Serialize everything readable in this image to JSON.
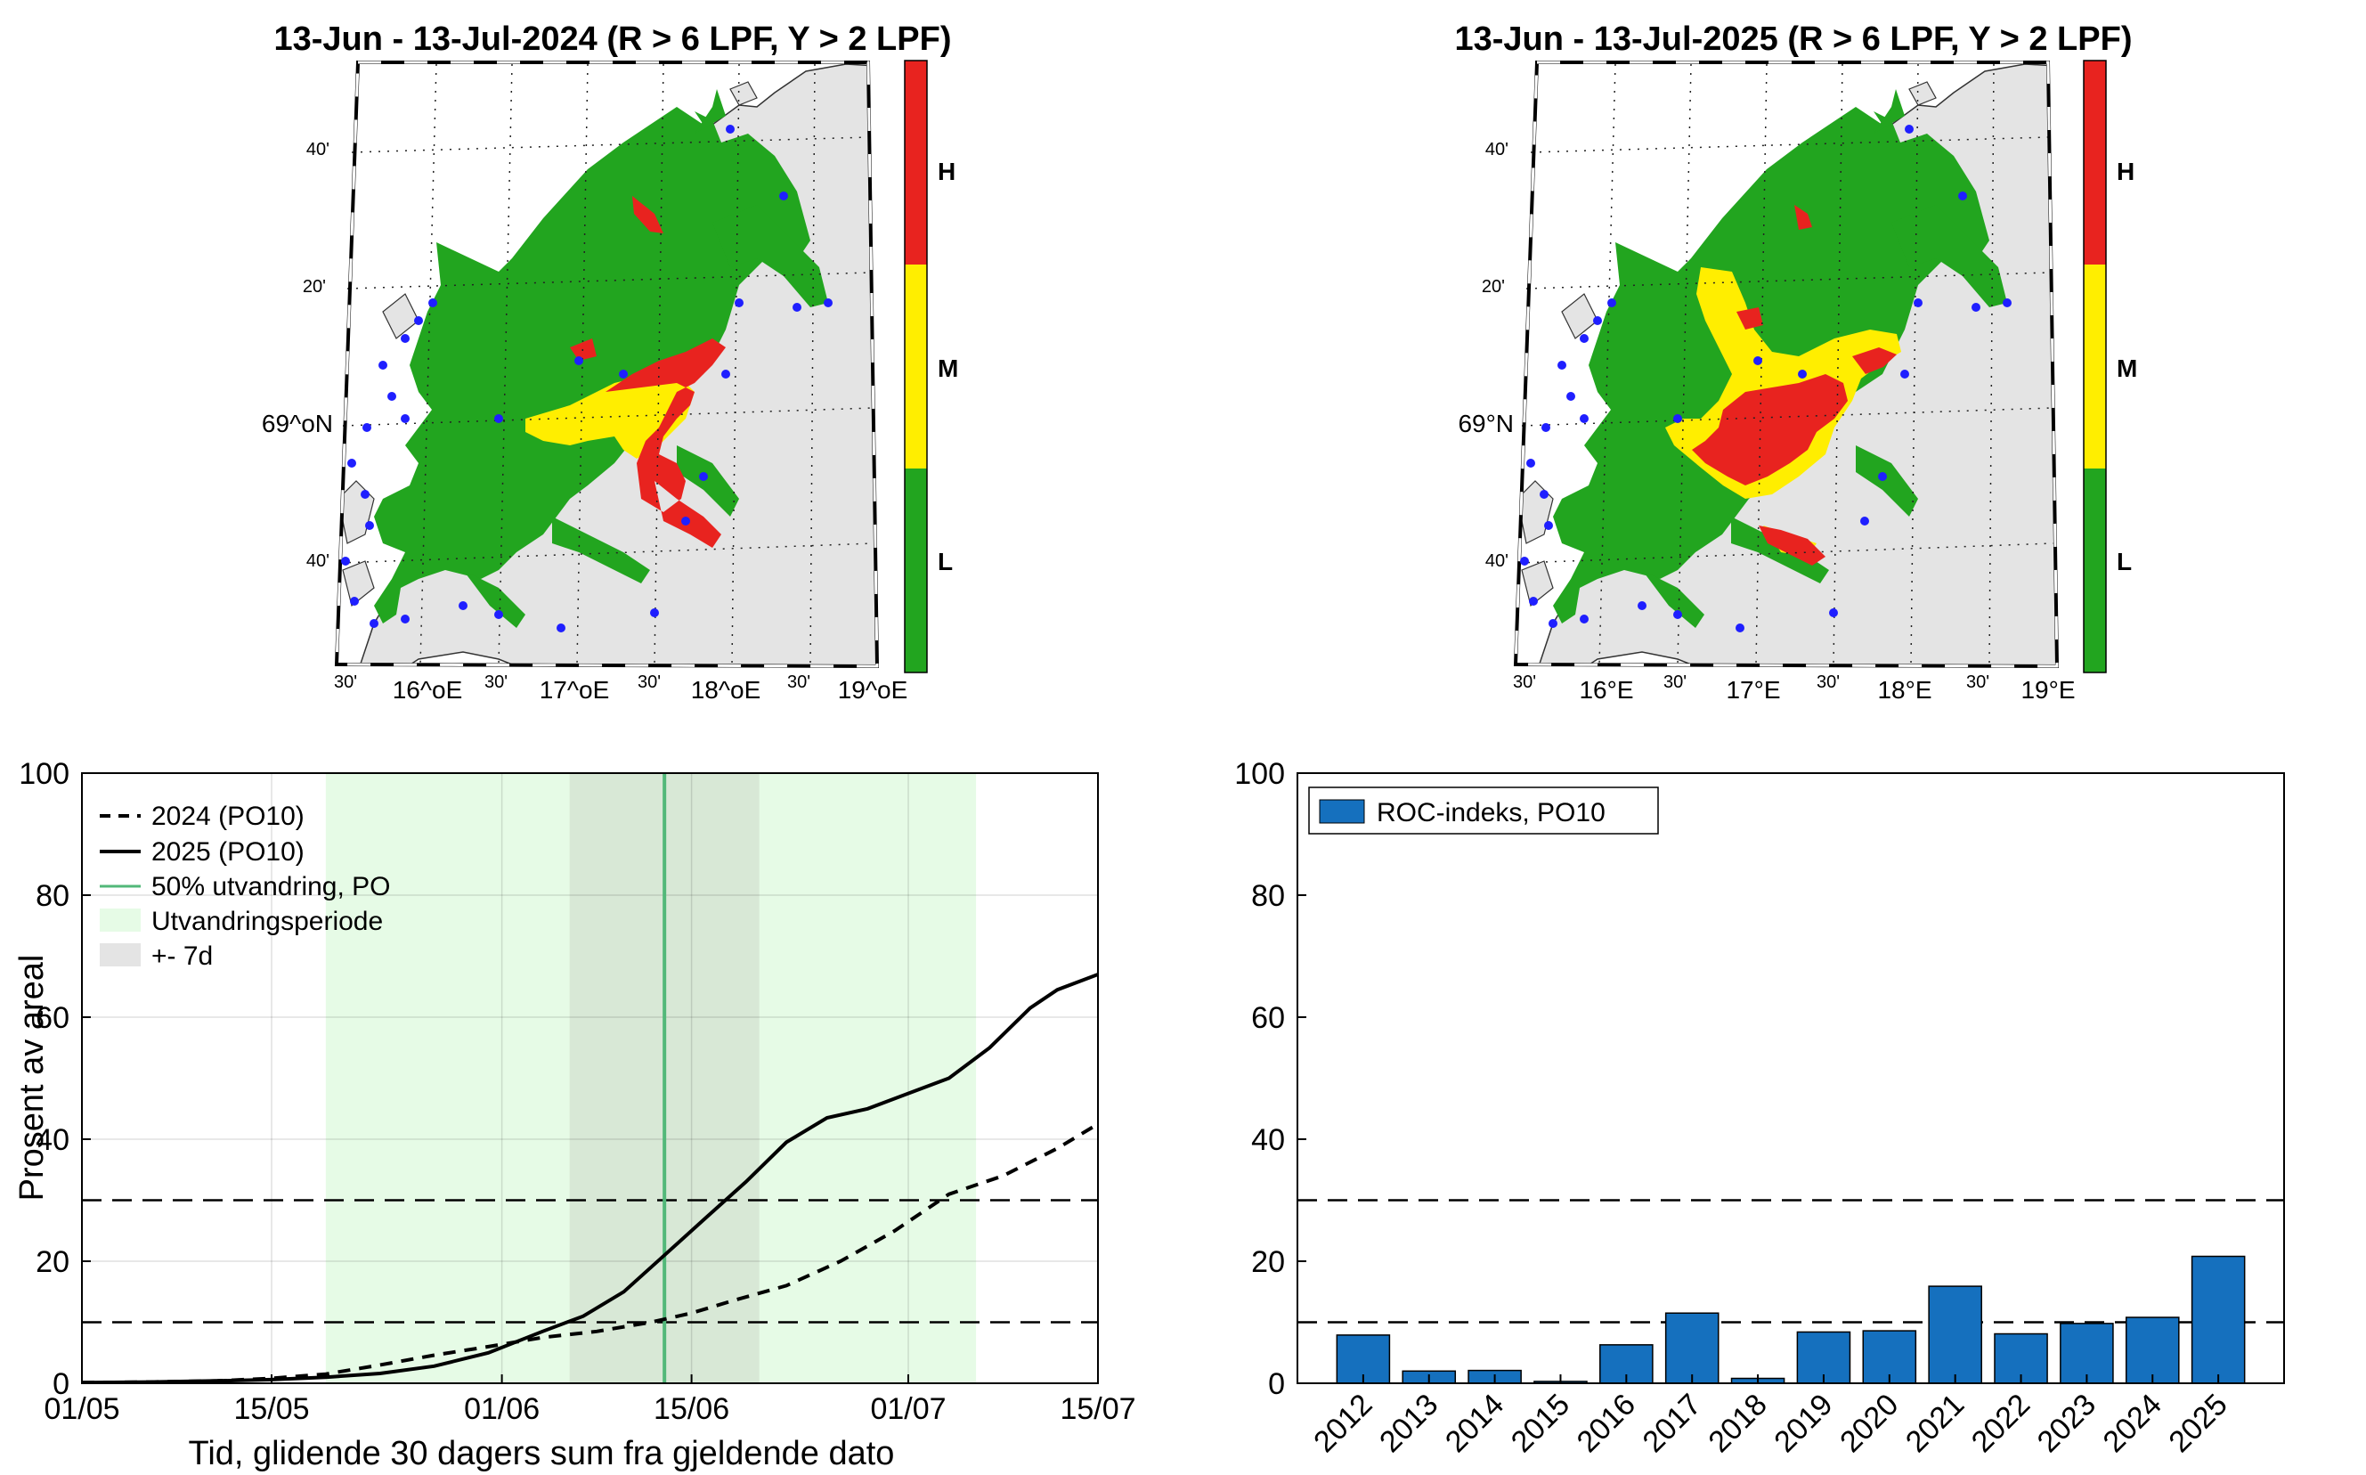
{
  "maps": [
    {
      "title": "13-Jun - 13-Jul-2024  (R > 6 LPF, Y > 2 LPF)",
      "lat_labels": [
        "40'",
        "20'",
        "69^oN",
        "40'"
      ],
      "lon_labels": [
        "30'",
        "16^oE",
        "30'",
        "17^oE",
        "30'",
        "18^oE",
        "30'",
        "19^oE"
      ],
      "colorbar_labels": [
        "H",
        "M",
        "L"
      ]
    },
    {
      "title": "13-Jun - 13-Jul-2025  (R > 6 LPF, Y > 2 LPF)",
      "lat_labels": [
        "40'",
        "20'",
        "69°N",
        "40'"
      ],
      "lon_labels": [
        "30'",
        "16°E",
        "30'",
        "17°E",
        "30'",
        "18°E",
        "30'",
        "19°E"
      ],
      "colorbar_labels": [
        "H",
        "M",
        "L"
      ]
    }
  ],
  "colors": {
    "high": "#e8231f",
    "medium": "#ffee00",
    "low": "#22a51f",
    "land": "#e4e4e4",
    "migration_period": "#e6fbe6",
    "pm7d": "#d8e8d6",
    "migration_line": "#52b879",
    "bar": "#1570be"
  },
  "chart_data": [
    {
      "type": "line",
      "xlabel": "Tid, glidende 30 dagers sum fra gjeldende dato",
      "ylabel": "Prosent av areal",
      "x_ticks": [
        "01/05",
        "15/05",
        "01/06",
        "15/06",
        "01/07",
        "15/07"
      ],
      "x_tick_days": [
        0,
        14,
        31,
        45,
        61,
        75
      ],
      "xlim_days": [
        0,
        75
      ],
      "ylim": [
        0,
        100
      ],
      "y_ticks": [
        0,
        20,
        40,
        60,
        80,
        100
      ],
      "grid": true,
      "legend": [
        "2024 (PO10)",
        "2025 (PO10)",
        "50% utvandring, PO",
        "Utvandringsperiode",
        "+- 7d"
      ],
      "legend_position": "top-left",
      "migration_period_days": [
        18,
        66
      ],
      "pm7d_days": [
        36,
        50
      ],
      "migration_50pct_day": 43,
      "threshold_lines": [
        10,
        30
      ],
      "series": [
        {
          "name": "2024 (PO10)",
          "style": "dashed",
          "x": [
            0,
            5,
            10,
            14,
            18,
            22,
            26,
            30,
            34,
            38,
            42,
            45,
            48,
            52,
            56,
            60,
            64,
            68,
            72,
            75
          ],
          "values": [
            0.1,
            0.2,
            0.4,
            0.8,
            1.5,
            3,
            4.6,
            6,
            7.5,
            8.5,
            10,
            11.5,
            13.5,
            16,
            20,
            25,
            31,
            34,
            38.5,
            42.5
          ]
        },
        {
          "name": "2025 (PO10)",
          "style": "solid",
          "x": [
            0,
            5,
            10,
            14,
            18,
            22,
            26,
            30,
            34,
            37,
            40,
            43,
            46,
            49,
            52,
            55,
            58,
            61,
            64,
            67,
            70,
            72,
            75
          ],
          "values": [
            0.1,
            0.2,
            0.4,
            0.6,
            1,
            1.6,
            2.8,
            5,
            8.5,
            11,
            15,
            21,
            27,
            33,
            39.5,
            43.5,
            45,
            47.5,
            50,
            55,
            61.5,
            64.5,
            67
          ]
        }
      ]
    },
    {
      "type": "bar",
      "categories": [
        "2012",
        "2013",
        "2014",
        "2015",
        "2016",
        "2017",
        "2018",
        "2019",
        "2020",
        "2021",
        "2022",
        "2023",
        "2024",
        "2025"
      ],
      "values": [
        7.9,
        2,
        2.1,
        0.3,
        6.3,
        11.5,
        0.8,
        8.4,
        8.6,
        15.9,
        8.1,
        9.8,
        10.8,
        20.8
      ],
      "ylim": [
        0,
        100
      ],
      "y_ticks": [
        0,
        20,
        40,
        60,
        80,
        100
      ],
      "legend": [
        "ROC-indeks, PO10"
      ],
      "legend_position": "top-left",
      "threshold_lines": [
        10,
        30
      ],
      "grid": false
    }
  ]
}
